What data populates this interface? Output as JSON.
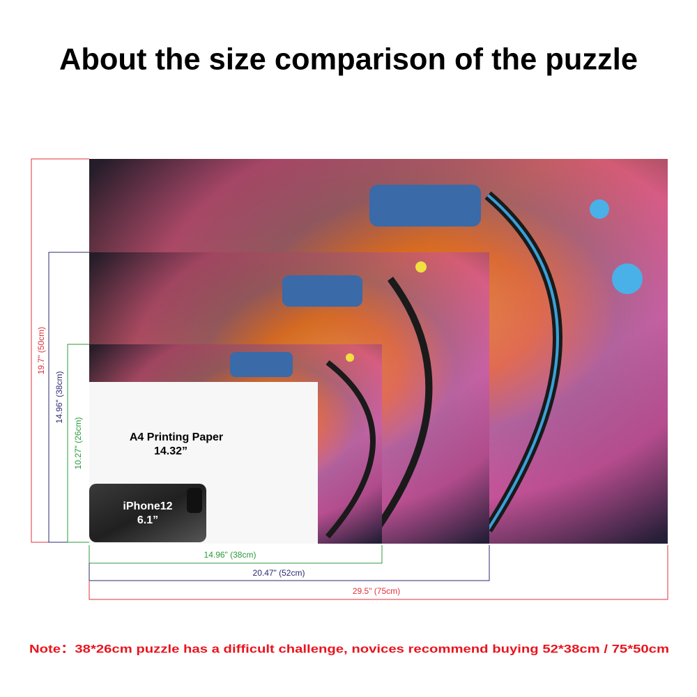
{
  "title": "About the size comparison of the puzzle",
  "heights": [
    "19.7\" (50cm)",
    "14.96\" (38cm)",
    "10.27\" (26cm)"
  ],
  "widths": [
    "14.96\" (38cm)",
    "20.47\" (52cm)",
    "29.5\" (75cm)"
  ],
  "paper": {
    "label": "A4 Printing Paper",
    "size": "14.32”"
  },
  "phone": {
    "label": "iPhone12",
    "size": "6.1”"
  },
  "note": "Note：38*26cm puzzle has a difficult challenge, novices recommend buying 52*38cm / 75*50cm"
}
